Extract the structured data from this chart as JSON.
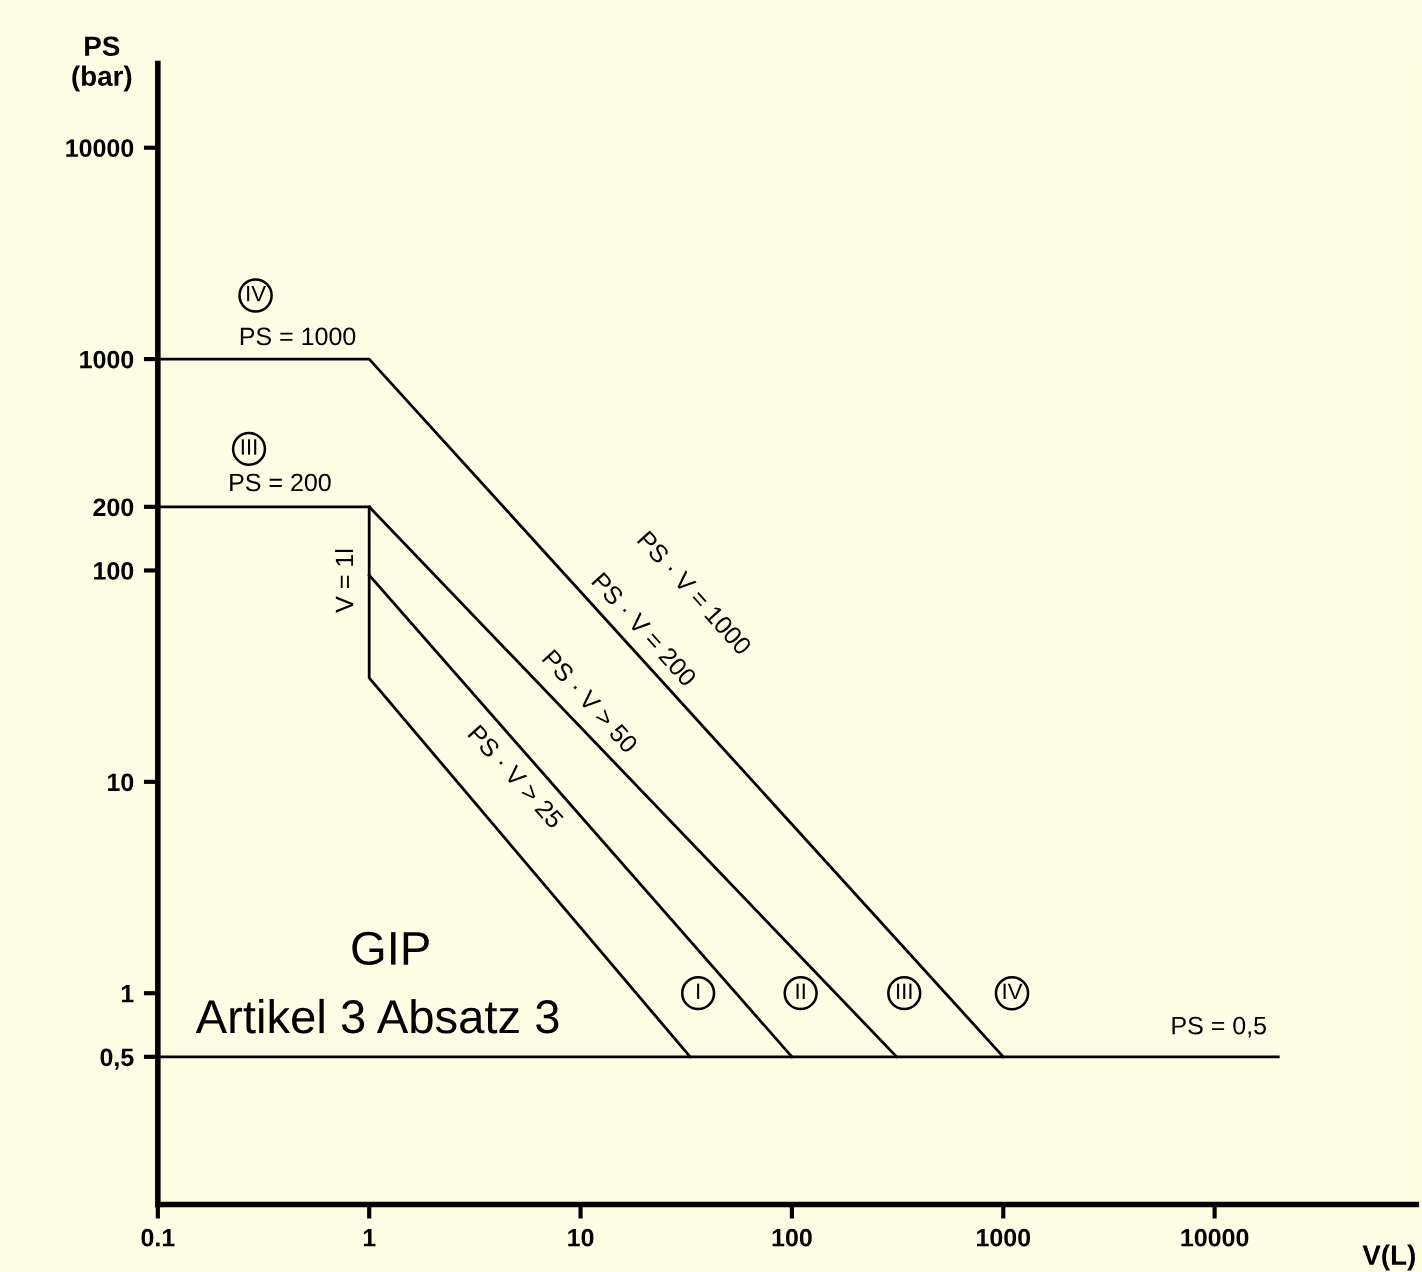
{
  "chart_data": {
    "type": "line",
    "xlabel": "V(L)",
    "ylabel": "PS\n(bar)",
    "log": "xy",
    "grid": false,
    "marker": "none",
    "line_style": "solid",
    "xlim": [
      0.1,
      90000
    ],
    "ylim": [
      0.1,
      25000
    ],
    "xticks": [
      0.1,
      1,
      10,
      100,
      1000,
      10000
    ],
    "yticks": [
      {
        "value": 0.5,
        "label": "0,5"
      },
      1,
      10,
      100,
      200,
      1000,
      10000
    ],
    "series": [
      {
        "color": "#000000",
        "x": [
          0.1,
          1,
          1000
        ],
        "values": [
          1000,
          1000,
          0.5
        ]
      },
      {
        "color": "#000000",
        "x": [
          0.1,
          1,
          313
        ],
        "values": [
          200,
          200,
          0.5
        ]
      },
      {
        "color": "#000000",
        "x": [
          1,
          1,
          33
        ],
        "values": [
          200,
          31,
          0.5
        ]
      },
      {
        "color": "#000000",
        "x": [
          1,
          100
        ],
        "values": [
          95,
          0.5
        ]
      },
      {
        "color": "#000000",
        "x": [
          0.1,
          20000
        ],
        "values": [
          0.5,
          0.5
        ]
      }
    ],
    "annotations": [
      {
        "text": "IV",
        "x": 0.29,
        "y": 2000
      },
      "PS = 1000",
      {
        "text": "III",
        "x": 0.27,
        "y": 376
      },
      "PS = 200",
      "V = 1l",
      "PS · V = 1000",
      "PS · V = 200",
      "PS · V > 50",
      "PS · V > 25",
      "GIP",
      "Artikel 3 Absatz 3",
      {
        "text": "I",
        "x": 36,
        "y": 1
      },
      {
        "text": "II",
        "x": 110,
        "y": 1
      },
      {
        "text": "III",
        "x": 340,
        "y": 1
      },
      {
        "text": "IV",
        "x": 1100,
        "y": 1
      },
      "PS = 0,5"
    ]
  }
}
